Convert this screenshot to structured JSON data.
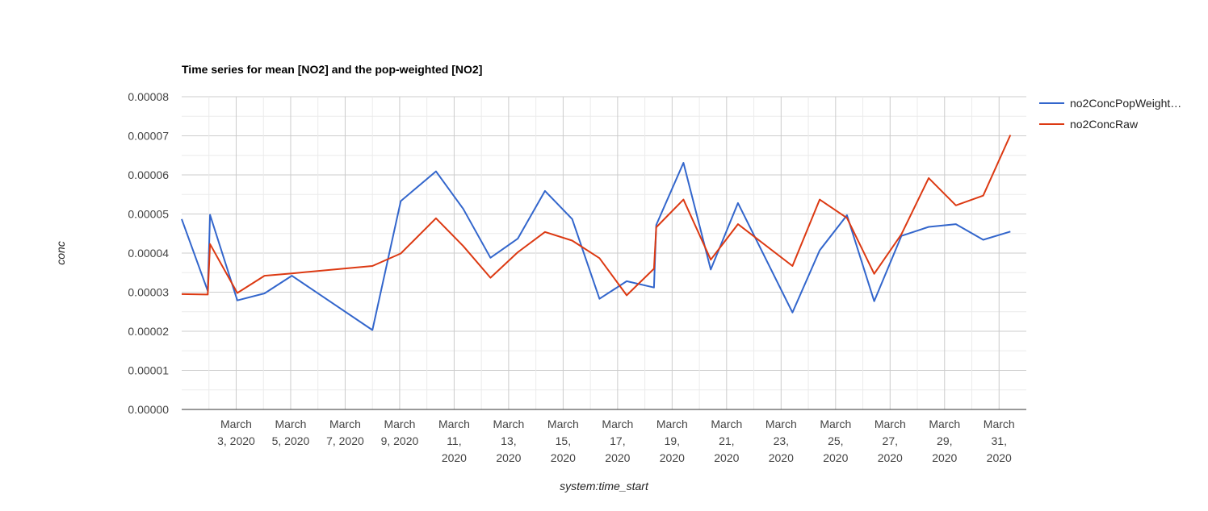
{
  "chart_data": {
    "type": "line",
    "title": "Time series for mean [NO2] and the pop-weighted [NO2]",
    "xlabel": "system:time_start",
    "ylabel": "conc",
    "ylim": [
      0,
      8e-05
    ],
    "y_ticks": [
      "0.00000",
      "0.00001",
      "0.00002",
      "0.00003",
      "0.00004",
      "0.00005",
      "0.00006",
      "0.00007",
      "0.00008"
    ],
    "x_range": [
      "2020-03-01",
      "2020-04-01"
    ],
    "x_ticks": [
      {
        "date": "2020-03-03",
        "label": [
          "March",
          "3, 2020"
        ]
      },
      {
        "date": "2020-03-05",
        "label": [
          "March",
          "5, 2020"
        ]
      },
      {
        "date": "2020-03-07",
        "label": [
          "March",
          "7, 2020"
        ]
      },
      {
        "date": "2020-03-09",
        "label": [
          "March",
          "9, 2020"
        ]
      },
      {
        "date": "2020-03-11",
        "label": [
          "March",
          "11,",
          "2020"
        ]
      },
      {
        "date": "2020-03-13",
        "label": [
          "March",
          "13,",
          "2020"
        ]
      },
      {
        "date": "2020-03-15",
        "label": [
          "March",
          "15,",
          "2020"
        ]
      },
      {
        "date": "2020-03-17",
        "label": [
          "March",
          "17,",
          "2020"
        ]
      },
      {
        "date": "2020-03-19",
        "label": [
          "March",
          "19,",
          "2020"
        ]
      },
      {
        "date": "2020-03-21",
        "label": [
          "March",
          "21,",
          "2020"
        ]
      },
      {
        "date": "2020-03-23",
        "label": [
          "March",
          "23,",
          "2020"
        ]
      },
      {
        "date": "2020-03-25",
        "label": [
          "March",
          "25,",
          "2020"
        ]
      },
      {
        "date": "2020-03-27",
        "label": [
          "March",
          "27,",
          "2020"
        ]
      },
      {
        "date": "2020-03-29",
        "label": [
          "March",
          "29,",
          "2020"
        ]
      },
      {
        "date": "2020-03-31",
        "label": [
          "March",
          "31,",
          "2020"
        ]
      }
    ],
    "grid": true,
    "legend_position": "right",
    "series": [
      {
        "name": "no2ConcPopWeight…",
        "color": "#3366cc",
        "points": [
          [
            "2020-03-01 00:00",
            4.87e-05
          ],
          [
            "2020-03-01 23:00",
            3.03e-05
          ],
          [
            "2020-03-02 01:00",
            4.98e-05
          ],
          [
            "2020-03-03 01:00",
            2.79e-05
          ],
          [
            "2020-03-04 01:00",
            2.97e-05
          ],
          [
            "2020-03-05 01:00",
            3.42e-05
          ],
          [
            "2020-03-08 00:00",
            2.03e-05
          ],
          [
            "2020-03-09 01:00",
            5.33e-05
          ],
          [
            "2020-03-10 08:00",
            6.09e-05
          ],
          [
            "2020-03-11 08:00",
            5.13e-05
          ],
          [
            "2020-03-12 08:00",
            3.88e-05
          ],
          [
            "2020-03-13 08:00",
            4.37e-05
          ],
          [
            "2020-03-14 08:00",
            5.59e-05
          ],
          [
            "2020-03-15 08:00",
            4.87e-05
          ],
          [
            "2020-03-16 08:00",
            2.83e-05
          ],
          [
            "2020-03-17 08:00",
            3.28e-05
          ],
          [
            "2020-03-18 08:00",
            3.12e-05
          ],
          [
            "2020-03-18 10:00",
            4.72e-05
          ],
          [
            "2020-03-19 10:00",
            6.31e-05
          ],
          [
            "2020-03-20 10:00",
            3.58e-05
          ],
          [
            "2020-03-21 10:00",
            5.28e-05
          ],
          [
            "2020-03-23 10:00",
            2.48e-05
          ],
          [
            "2020-03-24 10:00",
            4.07e-05
          ],
          [
            "2020-03-25 10:00",
            4.97e-05
          ],
          [
            "2020-03-26 10:00",
            2.77e-05
          ],
          [
            "2020-03-27 10:00",
            4.44e-05
          ],
          [
            "2020-03-28 10:00",
            4.67e-05
          ],
          [
            "2020-03-29 10:00",
            4.74e-05
          ],
          [
            "2020-03-30 10:00",
            4.34e-05
          ],
          [
            "2020-03-31 10:00",
            4.55e-05
          ]
        ]
      },
      {
        "name": "no2ConcRaw",
        "color": "#dc3912",
        "points": [
          [
            "2020-03-01 00:00",
            2.95e-05
          ],
          [
            "2020-03-01 23:00",
            2.94e-05
          ],
          [
            "2020-03-02 01:00",
            4.23e-05
          ],
          [
            "2020-03-03 01:00",
            2.98e-05
          ],
          [
            "2020-03-04 01:00",
            3.42e-05
          ],
          [
            "2020-03-05 01:00",
            3.48e-05
          ],
          [
            "2020-03-08 00:00",
            3.67e-05
          ],
          [
            "2020-03-09 01:00",
            3.99e-05
          ],
          [
            "2020-03-10 08:00",
            4.89e-05
          ],
          [
            "2020-03-11 08:00",
            4.18e-05
          ],
          [
            "2020-03-12 08:00",
            3.37e-05
          ],
          [
            "2020-03-13 08:00",
            4.02e-05
          ],
          [
            "2020-03-14 08:00",
            4.54e-05
          ],
          [
            "2020-03-15 08:00",
            4.32e-05
          ],
          [
            "2020-03-16 08:00",
            3.87e-05
          ],
          [
            "2020-03-17 08:00",
            2.92e-05
          ],
          [
            "2020-03-18 08:00",
            3.6e-05
          ],
          [
            "2020-03-18 10:00",
            4.66e-05
          ],
          [
            "2020-03-19 10:00",
            5.37e-05
          ],
          [
            "2020-03-20 10:00",
            3.83e-05
          ],
          [
            "2020-03-21 10:00",
            4.74e-05
          ],
          [
            "2020-03-23 10:00",
            3.67e-05
          ],
          [
            "2020-03-24 10:00",
            5.37e-05
          ],
          [
            "2020-03-25 10:00",
            4.9e-05
          ],
          [
            "2020-03-26 10:00",
            3.47e-05
          ],
          [
            "2020-03-27 10:00",
            4.48e-05
          ],
          [
            "2020-03-28 10:00",
            5.92e-05
          ],
          [
            "2020-03-29 10:00",
            5.22e-05
          ],
          [
            "2020-03-30 10:00",
            5.47e-05
          ],
          [
            "2020-03-31 10:00",
            7.02e-05
          ]
        ]
      }
    ]
  }
}
